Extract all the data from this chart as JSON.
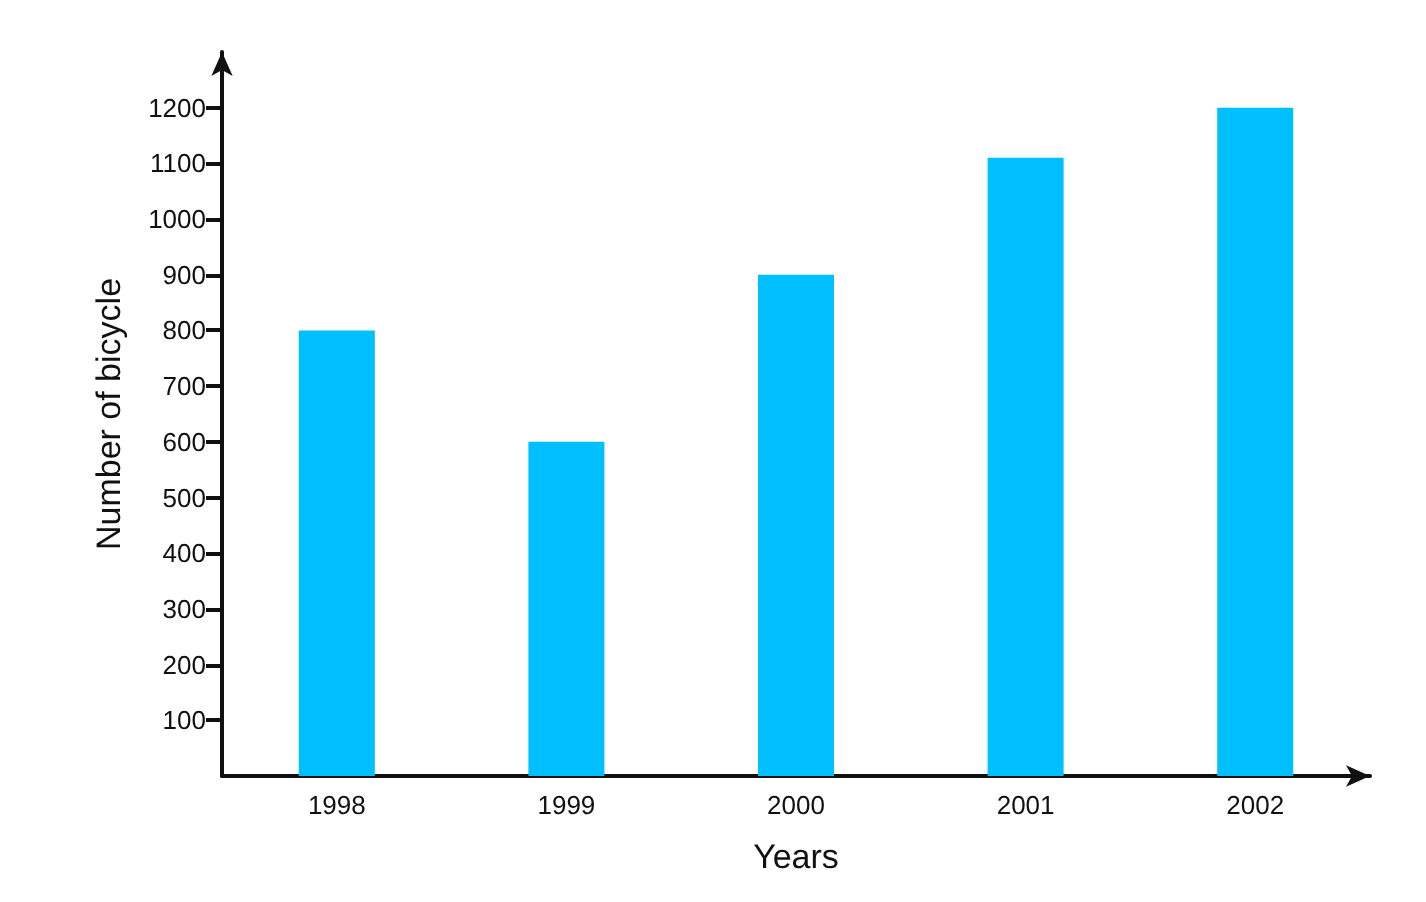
{
  "chart_data": {
    "type": "bar",
    "xlabel": "Years",
    "ylabel": "Number of bicycle",
    "categories": [
      "1998",
      "1999",
      "2000",
      "2001",
      "2002"
    ],
    "values": [
      800,
      600,
      900,
      1110,
      1200
    ],
    "color": "#00bfff",
    "ylim": [
      0,
      1300
    ],
    "yticks": [
      100,
      200,
      300,
      400,
      500,
      600,
      700,
      800,
      900,
      1000,
      1100,
      1200
    ],
    "grid": false
  }
}
